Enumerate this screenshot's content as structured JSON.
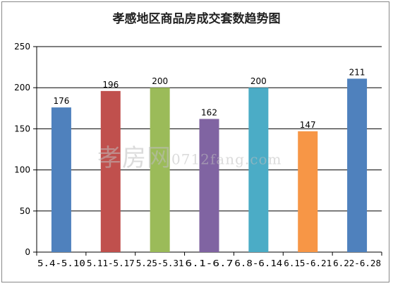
{
  "chart_data": {
    "type": "bar",
    "title": "孝感地区商品房成交套数趋势图",
    "categories": [
      "5.4-5.10",
      "5.11-5.17",
      "5.25-5.31",
      "6.1-6.7",
      "6.8-6.14",
      "6.15-6.21",
      "6.22-6.28"
    ],
    "values": [
      176,
      196,
      200,
      162,
      200,
      147,
      211
    ],
    "colors": [
      "#4f81bd",
      "#c0504d",
      "#9bbb59",
      "#8064a2",
      "#4bacc6",
      "#f79646",
      "#4f81bd"
    ],
    "ylim": [
      0,
      250
    ],
    "yticks": [
      0,
      50,
      100,
      150,
      200,
      250
    ],
    "grid": true,
    "legend": "none"
  },
  "watermark": {
    "brand": "孝房网",
    "url": "0712fang.com"
  }
}
